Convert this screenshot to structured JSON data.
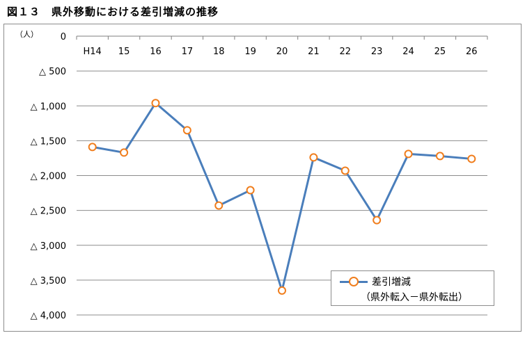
{
  "figure_title": "図１３　県外移動における差引増減の推移",
  "chart_data": {
    "type": "line",
    "unit_label": "（人）",
    "categories": [
      "H14",
      "15",
      "16",
      "17",
      "18",
      "19",
      "20",
      "21",
      "22",
      "23",
      "24",
      "25",
      "26"
    ],
    "series": [
      {
        "name": "差引増減",
        "values": [
          -1590,
          -1670,
          -960,
          -1350,
          -2430,
          -2210,
          -3650,
          -1740,
          -1930,
          -2640,
          -1690,
          -1720,
          -1760
        ],
        "line_color": "#4a7ebb",
        "marker_color": "#f07d1c"
      }
    ],
    "legend_note": "（県外転入－県外転出）",
    "yticks": [
      {
        "value": 0,
        "label": "0"
      },
      {
        "value": -500,
        "label": "△ 500"
      },
      {
        "value": -1000,
        "label": "△ 1,000"
      },
      {
        "value": -1500,
        "label": "△ 1,500"
      },
      {
        "value": -2000,
        "label": "△ 2,000"
      },
      {
        "value": -2500,
        "label": "△ 2,500"
      },
      {
        "value": -3000,
        "label": "△ 3,000"
      },
      {
        "value": -3500,
        "label": "△ 3,500"
      },
      {
        "value": -4000,
        "label": "△ 4,000"
      }
    ],
    "ylim": [
      -4000,
      0
    ],
    "grid": true,
    "legend_position": "bottom-right"
  }
}
